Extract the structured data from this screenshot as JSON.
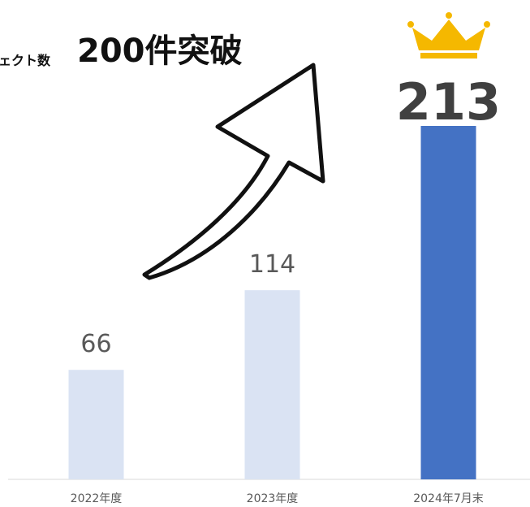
{
  "chart_data": {
    "type": "bar",
    "title": "ェクト数",
    "annotation": "200件突破",
    "categories": [
      "2022年度",
      "2023年度",
      "2024年7月末"
    ],
    "values": [
      66,
      114,
      213
    ],
    "colors": [
      "#dae3f3",
      "#dae3f3",
      "#4472c4"
    ],
    "highlight": 2
  }
}
